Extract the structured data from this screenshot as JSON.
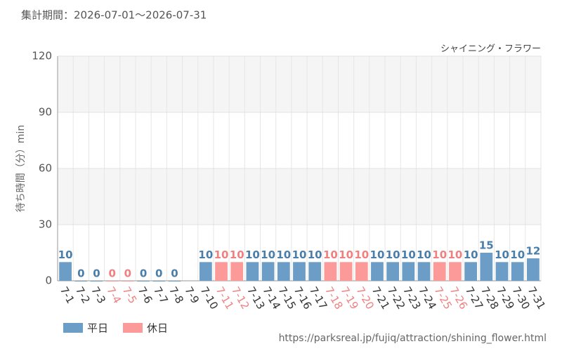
{
  "chart_data": {
    "type": "bar",
    "subtitle": "集計期間：2026-07-01～2026-07-31",
    "title": "シャイニング・フラワー",
    "y_label": "待ち時間（分）min",
    "footer": "https://parksreal.jp/fujiq/attraction/shining_flower.html",
    "categories": [
      "7-1",
      "7-2",
      "7-3",
      "7-4",
      "7-5",
      "7-6",
      "7-7",
      "7-8",
      "7-9",
      "7-10",
      "7-11",
      "7-12",
      "7-13",
      "7-14",
      "7-15",
      "7-16",
      "7-17",
      "7-18",
      "7-19",
      "7-20",
      "7-21",
      "7-22",
      "7-23",
      "7-24",
      "7-25",
      "7-26",
      "7-27",
      "7-28",
      "7-29",
      "7-30",
      "7-31"
    ],
    "series": [
      {
        "name": "平日",
        "color": "#6b9dc6",
        "values": [
          10,
          0,
          0,
          null,
          null,
          0,
          0,
          0,
          null,
          10,
          null,
          null,
          10,
          10,
          10,
          10,
          10,
          null,
          null,
          null,
          10,
          10,
          10,
          10,
          null,
          null,
          10,
          15,
          10,
          10,
          12
        ]
      },
      {
        "name": "休日",
        "color": "#fc9a9a",
        "values": [
          null,
          null,
          null,
          0,
          0,
          null,
          null,
          null,
          null,
          null,
          10,
          10,
          null,
          null,
          null,
          null,
          null,
          10,
          10,
          10,
          null,
          null,
          null,
          null,
          10,
          10,
          null,
          null,
          null,
          null,
          null
        ]
      }
    ],
    "ylim": [
      0,
      120
    ],
    "yticks": [
      0,
      30,
      60,
      90,
      120
    ],
    "grid": true
  }
}
